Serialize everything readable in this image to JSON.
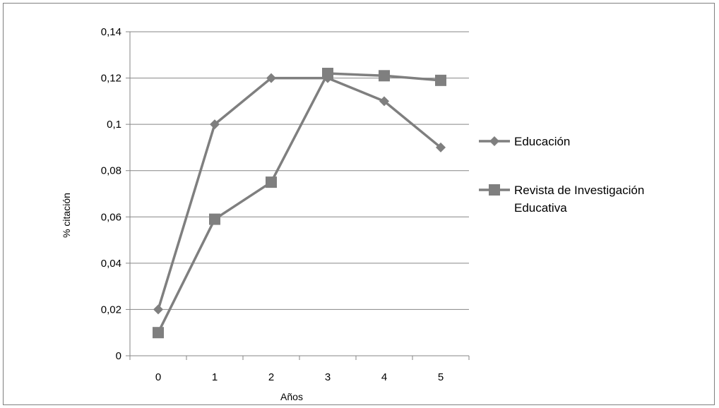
{
  "chart_data": {
    "type": "line",
    "title": "",
    "xlabel": "Años",
    "ylabel": "% citación",
    "x": [
      0,
      1,
      2,
      3,
      4,
      5
    ],
    "x_tick_labels": [
      "0",
      "1",
      "2",
      "3",
      "4",
      "5"
    ],
    "ylim": [
      0,
      0.14
    ],
    "y_ticks": [
      0,
      0.02,
      0.04,
      0.06,
      0.08,
      0.1,
      0.12,
      0.14
    ],
    "y_tick_labels": [
      "0",
      "0,02",
      "0,04",
      "0,06",
      "0,08",
      "0,1",
      "0,12",
      "0,14"
    ],
    "grid": true,
    "legend_position": "right",
    "series": [
      {
        "name": "Educación",
        "values": [
          0.02,
          0.1,
          0.12,
          0.12,
          0.11,
          0.09
        ],
        "marker": "diamond",
        "color": "#7f7f7f"
      },
      {
        "name": "Revista de Investigación Educativa",
        "name_lines": [
          "Revista de Investigación",
          "Educativa"
        ],
        "values": [
          0.01,
          0.059,
          0.075,
          0.122,
          0.121,
          0.119
        ],
        "marker": "square",
        "color": "#7f7f7f"
      }
    ]
  }
}
